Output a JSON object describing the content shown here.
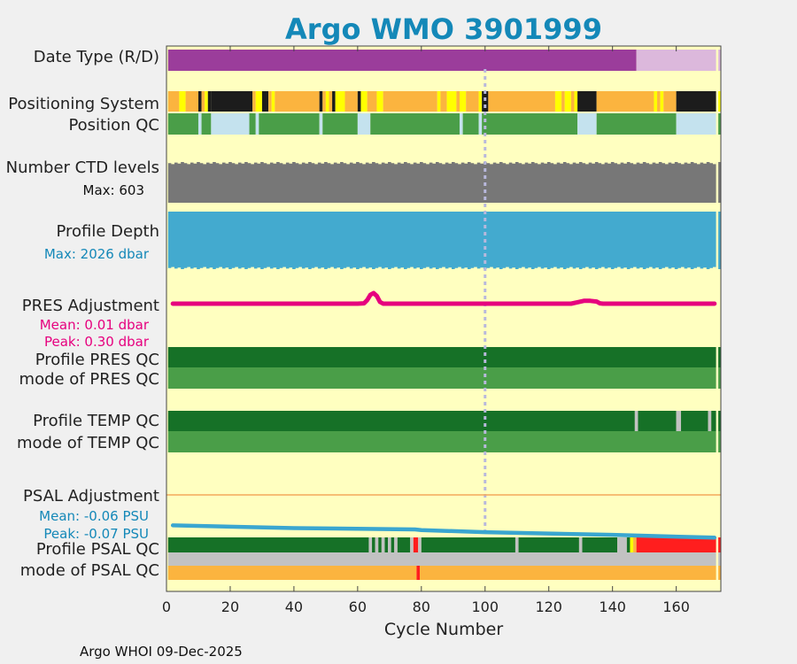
{
  "chart_data": {
    "type": "timeline",
    "title": "Argo WMO 3901999",
    "xlabel": "Cycle Number",
    "xlim": [
      0,
      174
    ],
    "xticks": [
      0,
      20,
      40,
      60,
      80,
      100,
      120,
      140,
      160
    ],
    "reference_cycle": 100,
    "footer": "Argo WHOI 09-Dec-2025",
    "colors": {
      "background": "#ffffc0",
      "purple": "#9b3d9b",
      "lightpurple": "#dcb8dc",
      "orange": "#fbb43f",
      "yellow": "#ffff00",
      "black": "#1c1c1c",
      "green": "#4a9e48",
      "lightblue": "#c4e2ee",
      "gray": "#777777",
      "blue": "#43aacf",
      "magenta": "#e6007e",
      "darkgreen": "#167127",
      "lightgray": "#c2c2c2",
      "red": "#ff1e1e",
      "psal_blue": "#3aa6d0"
    },
    "rows": [
      {
        "key": "date_type",
        "label": "Date Type (R/D)",
        "type": "segments",
        "segments": [
          {
            "from": 0.5,
            "to": 147.5,
            "color": "purple"
          },
          {
            "from": 147.5,
            "to": 172.5,
            "color": "lightpurple"
          },
          {
            "from": 173.2,
            "to": 174,
            "color": "lightpurple"
          }
        ]
      },
      {
        "key": "positioning_system",
        "label": "Positioning System",
        "type": "segments",
        "segments": [
          {
            "from": 0.5,
            "to": 4,
            "color": "orange"
          },
          {
            "from": 4,
            "to": 6,
            "color": "yellow"
          },
          {
            "from": 6,
            "to": 10,
            "color": "orange"
          },
          {
            "from": 10,
            "to": 11,
            "color": "black"
          },
          {
            "from": 11,
            "to": 12,
            "color": "orange"
          },
          {
            "from": 12,
            "to": 13,
            "color": "yellow"
          },
          {
            "from": 13,
            "to": 14,
            "color": "black"
          },
          {
            "from": 14,
            "to": 27,
            "color": "black"
          },
          {
            "from": 27,
            "to": 28,
            "color": "orange"
          },
          {
            "from": 28,
            "to": 30,
            "color": "yellow"
          },
          {
            "from": 30,
            "to": 32,
            "color": "black"
          },
          {
            "from": 32,
            "to": 33,
            "color": "orange"
          },
          {
            "from": 33,
            "to": 34,
            "color": "yellow"
          },
          {
            "from": 34,
            "to": 48,
            "color": "orange"
          },
          {
            "from": 48,
            "to": 49,
            "color": "black"
          },
          {
            "from": 49,
            "to": 50,
            "color": "orange"
          },
          {
            "from": 50,
            "to": 51,
            "color": "yellow"
          },
          {
            "from": 51,
            "to": 52,
            "color": "orange"
          },
          {
            "from": 52,
            "to": 53,
            "color": "black"
          },
          {
            "from": 53,
            "to": 56,
            "color": "yellow"
          },
          {
            "from": 56,
            "to": 60,
            "color": "orange"
          },
          {
            "from": 60,
            "to": 61,
            "color": "black"
          },
          {
            "from": 61,
            "to": 63,
            "color": "yellow"
          },
          {
            "from": 63,
            "to": 66,
            "color": "orange"
          },
          {
            "from": 66,
            "to": 68,
            "color": "yellow"
          },
          {
            "from": 68,
            "to": 85,
            "color": "orange"
          },
          {
            "from": 85,
            "to": 86,
            "color": "yellow"
          },
          {
            "from": 86,
            "to": 88,
            "color": "orange"
          },
          {
            "from": 88,
            "to": 91,
            "color": "yellow"
          },
          {
            "from": 91,
            "to": 92,
            "color": "orange"
          },
          {
            "from": 92,
            "to": 94,
            "color": "yellow"
          },
          {
            "from": 94,
            "to": 98,
            "color": "orange"
          },
          {
            "from": 98,
            "to": 99,
            "color": "yellow"
          },
          {
            "from": 99,
            "to": 101,
            "color": "black"
          },
          {
            "from": 101,
            "to": 122,
            "color": "orange"
          },
          {
            "from": 122,
            "to": 124,
            "color": "yellow"
          },
          {
            "from": 124,
            "to": 125,
            "color": "orange"
          },
          {
            "from": 125,
            "to": 127,
            "color": "yellow"
          },
          {
            "from": 127,
            "to": 128,
            "color": "orange"
          },
          {
            "from": 128,
            "to": 129,
            "color": "yellow"
          },
          {
            "from": 129,
            "to": 135,
            "color": "black"
          },
          {
            "from": 135,
            "to": 153,
            "color": "orange"
          },
          {
            "from": 153,
            "to": 154,
            "color": "yellow"
          },
          {
            "from": 154,
            "to": 155,
            "color": "orange"
          },
          {
            "from": 155,
            "to": 156,
            "color": "yellow"
          },
          {
            "from": 156,
            "to": 160,
            "color": "orange"
          },
          {
            "from": 160,
            "to": 172.5,
            "color": "black"
          },
          {
            "from": 173.2,
            "to": 174,
            "color": "yellow"
          }
        ]
      },
      {
        "key": "position_qc",
        "label": "Position QC",
        "type": "segments",
        "segments": [
          {
            "from": 0.5,
            "to": 10,
            "color": "green"
          },
          {
            "from": 10,
            "to": 11,
            "color": "lightblue"
          },
          {
            "from": 11,
            "to": 14,
            "color": "green"
          },
          {
            "from": 14,
            "to": 26,
            "color": "lightblue"
          },
          {
            "from": 26,
            "to": 28,
            "color": "green"
          },
          {
            "from": 28,
            "to": 29,
            "color": "lightblue"
          },
          {
            "from": 29,
            "to": 48,
            "color": "green"
          },
          {
            "from": 48,
            "to": 49,
            "color": "lightblue"
          },
          {
            "from": 49,
            "to": 60,
            "color": "green"
          },
          {
            "from": 60,
            "to": 64,
            "color": "lightblue"
          },
          {
            "from": 64,
            "to": 92,
            "color": "green"
          },
          {
            "from": 92,
            "to": 93,
            "color": "lightblue"
          },
          {
            "from": 93,
            "to": 98,
            "color": "green"
          },
          {
            "from": 98,
            "to": 99,
            "color": "lightblue"
          },
          {
            "from": 99,
            "to": 129,
            "color": "green"
          },
          {
            "from": 129,
            "to": 135,
            "color": "lightblue"
          },
          {
            "from": 135,
            "to": 160,
            "color": "green"
          },
          {
            "from": 160,
            "to": 172.5,
            "color": "lightblue"
          },
          {
            "from": 173.2,
            "to": 174,
            "color": "green"
          }
        ]
      },
      {
        "key": "ctd_levels",
        "label": "Number CTD levels",
        "sublabel": "Max: 603",
        "sublabel_color": "#111111",
        "type": "fill",
        "color": "gray",
        "max": 603,
        "typical": 595
      },
      {
        "key": "profile_depth",
        "label": "Profile Depth",
        "sublabel": "Max: 2026 dbar",
        "sublabel_color": "#1488b8",
        "type": "fill",
        "color": "blue",
        "max": 2026,
        "typical": 2010
      },
      {
        "key": "pres_adjustment",
        "label": "PRES Adjustment",
        "sublabel": "Mean: 0.01 dbar",
        "sublabel2": "Peak: 0.30 dbar",
        "sublabel_color": "#e6007e",
        "type": "line",
        "color": "magenta",
        "mean": 0.01,
        "peak": 0.3,
        "points": [
          [
            2,
            0.0
          ],
          [
            60,
            0.0
          ],
          [
            62,
            0.01
          ],
          [
            63,
            0.1
          ],
          [
            64,
            0.25
          ],
          [
            65,
            0.3
          ],
          [
            66,
            0.22
          ],
          [
            67,
            0.05
          ],
          [
            68,
            0.0
          ],
          [
            100,
            0.0
          ],
          [
            127,
            0.0
          ],
          [
            129,
            0.04
          ],
          [
            131,
            0.08
          ],
          [
            133,
            0.08
          ],
          [
            135,
            0.06
          ],
          [
            136,
            0.01
          ],
          [
            137,
            0.0
          ],
          [
            172,
            0.0
          ]
        ]
      },
      {
        "key": "profile_pres_qc",
        "label": "Profile PRES QC",
        "type": "segments",
        "segments": [
          {
            "from": 0.5,
            "to": 172.5,
            "color": "darkgreen"
          },
          {
            "from": 173.2,
            "to": 174,
            "color": "darkgreen"
          }
        ]
      },
      {
        "key": "mode_pres_qc",
        "label": "mode of PRES QC",
        "type": "segments",
        "segments": [
          {
            "from": 0.5,
            "to": 172.5,
            "color": "green"
          },
          {
            "from": 173.2,
            "to": 174,
            "color": "green"
          }
        ]
      },
      {
        "key": "profile_temp_qc",
        "label": "Profile TEMP QC",
        "type": "segments",
        "segments": [
          {
            "from": 0.5,
            "to": 147,
            "color": "darkgreen"
          },
          {
            "from": 147,
            "to": 148,
            "color": "lightgray"
          },
          {
            "from": 148,
            "to": 160,
            "color": "darkgreen"
          },
          {
            "from": 160,
            "to": 161.5,
            "color": "lightgray"
          },
          {
            "from": 161.5,
            "to": 170,
            "color": "darkgreen"
          },
          {
            "from": 170,
            "to": 171,
            "color": "lightgray"
          },
          {
            "from": 171,
            "to": 172.5,
            "color": "darkgreen"
          },
          {
            "from": 173.2,
            "to": 174,
            "color": "darkgreen"
          }
        ]
      },
      {
        "key": "mode_temp_qc",
        "label": "mode of TEMP QC",
        "type": "segments",
        "segments": [
          {
            "from": 0.5,
            "to": 172.5,
            "color": "green"
          },
          {
            "from": 173.2,
            "to": 174,
            "color": "green"
          }
        ]
      },
      {
        "key": "psal_adjustment",
        "label": "PSAL Adjustment",
        "sublabel": "Mean: -0.06 PSU",
        "sublabel2": "Peak: -0.07 PSU",
        "sublabel_color": "#1488b8",
        "type": "line",
        "color": "psal_blue",
        "mean": -0.06,
        "peak": -0.07,
        "points": [
          [
            2,
            -0.052
          ],
          [
            40,
            -0.056
          ],
          [
            78,
            -0.058
          ],
          [
            80,
            -0.059
          ],
          [
            100,
            -0.062
          ],
          [
            140,
            -0.066
          ],
          [
            172,
            -0.07
          ]
        ]
      },
      {
        "key": "profile_psal_qc",
        "label": "Profile PSAL QC",
        "type": "segments",
        "segments": [
          {
            "from": 0.5,
            "to": 63.5,
            "color": "darkgreen"
          },
          {
            "from": 63.5,
            "to": 64.5,
            "color": "lightgray"
          },
          {
            "from": 64.5,
            "to": 65.5,
            "color": "darkgreen"
          },
          {
            "from": 65.5,
            "to": 66.5,
            "color": "lightgray"
          },
          {
            "from": 66.5,
            "to": 67.5,
            "color": "darkgreen"
          },
          {
            "from": 67.5,
            "to": 68.5,
            "color": "lightgray"
          },
          {
            "from": 68.5,
            "to": 69.5,
            "color": "darkgreen"
          },
          {
            "from": 69.5,
            "to": 70.5,
            "color": "lightgray"
          },
          {
            "from": 70.5,
            "to": 71.5,
            "color": "darkgreen"
          },
          {
            "from": 71.5,
            "to": 72.5,
            "color": "lightgray"
          },
          {
            "from": 72.5,
            "to": 76.5,
            "color": "darkgreen"
          },
          {
            "from": 76.5,
            "to": 77.5,
            "color": "lightgray"
          },
          {
            "from": 77.5,
            "to": 79,
            "color": "red"
          },
          {
            "from": 79,
            "to": 80,
            "color": "lightgray"
          },
          {
            "from": 80,
            "to": 109.5,
            "color": "darkgreen"
          },
          {
            "from": 109.5,
            "to": 110.5,
            "color": "lightgray"
          },
          {
            "from": 110.5,
            "to": 129.5,
            "color": "darkgreen"
          },
          {
            "from": 129.5,
            "to": 130.5,
            "color": "lightgray"
          },
          {
            "from": 130.5,
            "to": 141.5,
            "color": "darkgreen"
          },
          {
            "from": 141.5,
            "to": 144.5,
            "color": "lightgray"
          },
          {
            "from": 144.5,
            "to": 145.5,
            "color": "darkgreen"
          },
          {
            "from": 145.5,
            "to": 146.5,
            "color": "yellow"
          },
          {
            "from": 146.5,
            "to": 147.5,
            "color": "orange"
          },
          {
            "from": 147.5,
            "to": 172.5,
            "color": "red"
          },
          {
            "from": 173.2,
            "to": 174,
            "color": "red"
          }
        ]
      },
      {
        "key": "mode_psal_qc",
        "label": "mode of PSAL QC",
        "type": "segments",
        "segments": [
          {
            "from": 0.5,
            "to": 78.5,
            "color": "orange"
          },
          {
            "from": 78.5,
            "to": 79.5,
            "color": "red"
          },
          {
            "from": 79.5,
            "to": 172.5,
            "color": "orange"
          },
          {
            "from": 173.2,
            "to": 174,
            "color": "orange"
          }
        ],
        "upper_band_color": "lightgray"
      }
    ]
  }
}
